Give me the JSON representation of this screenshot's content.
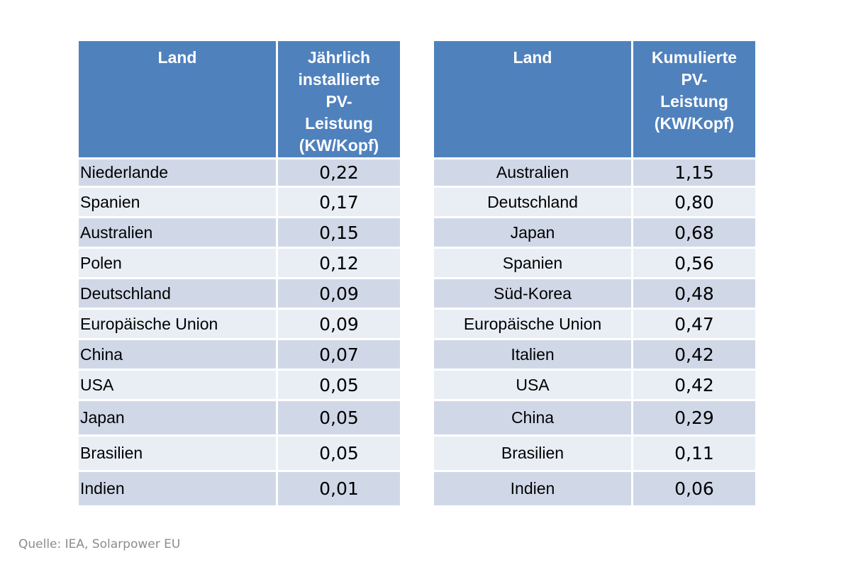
{
  "annual_table": {
    "header_country": "Land",
    "header_value_lines": [
      "Jährlich",
      "installierte",
      "PV-",
      "Leistung",
      "(KW/Kopf)"
    ],
    "rows": [
      {
        "country": "Niederlande",
        "value": "0,22"
      },
      {
        "country": "Spanien",
        "value": "0,17"
      },
      {
        "country": "Australien",
        "value": "0,15"
      },
      {
        "country": "Polen",
        "value": "0,12"
      },
      {
        "country": "Deutschland",
        "value": "0,09"
      },
      {
        "country": "Europäische Union",
        "value": "0,09"
      },
      {
        "country": "China",
        "value": "0,07"
      },
      {
        "country": "USA",
        "value": "0,05"
      },
      {
        "country": "Japan",
        "value": "0,05"
      },
      {
        "country": "Brasilien",
        "value": "0,05"
      },
      {
        "country": "Indien",
        "value": "0,01"
      }
    ]
  },
  "cumulative_table": {
    "header_country": "Land",
    "header_value_lines": [
      "Kumulierte",
      "PV-",
      "Leistung",
      "(KW/Kopf)"
    ],
    "rows": [
      {
        "country": "Australien",
        "value": "1,15"
      },
      {
        "country": "Deutschland",
        "value": "0,80"
      },
      {
        "country": "Japan",
        "value": "0,68"
      },
      {
        "country": "Spanien",
        "value": "0,56"
      },
      {
        "country": "Süd-Korea",
        "value": "0,48"
      },
      {
        "country": "Europäische Union",
        "value": "0,47"
      },
      {
        "country": "Italien",
        "value": "0,42"
      },
      {
        "country": "USA",
        "value": "0,42"
      },
      {
        "country": "China",
        "value": "0,29"
      },
      {
        "country": "Brasilien",
        "value": "0,11"
      },
      {
        "country": "Indien",
        "value": "0,06"
      }
    ]
  },
  "source_note": "Quelle: IEA, Solarpower EU",
  "colors": {
    "header_bg": "#4f81bd",
    "row_odd": "#d0d8e8",
    "row_even": "#e9edf4",
    "source_text": "#8c8c8c"
  }
}
